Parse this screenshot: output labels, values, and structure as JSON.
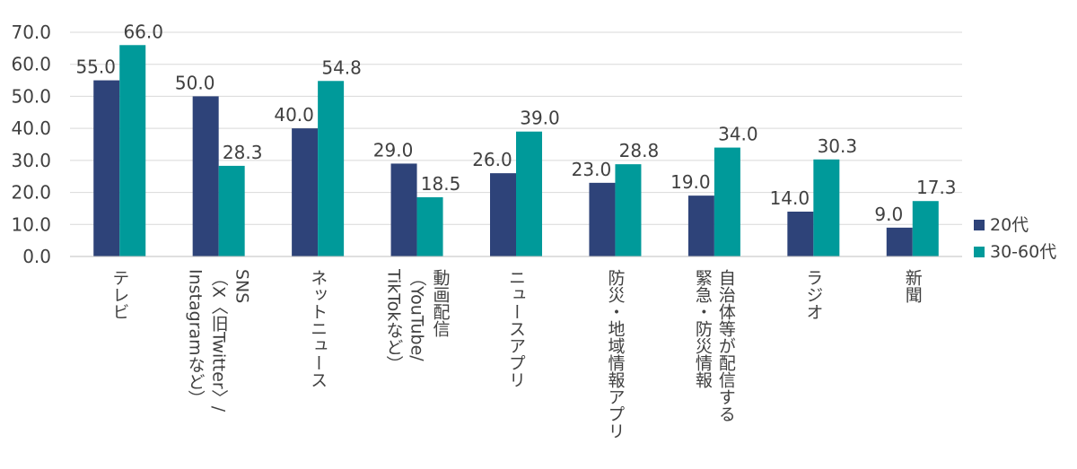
{
  "chart_data": {
    "type": "bar",
    "categories": [
      [
        "テレビ"
      ],
      [
        "SNS",
        "（X〈旧Twitter〉/",
        "Instagramなど）"
      ],
      [
        "ネットニュース"
      ],
      [
        "動画配信",
        "（YouTube/",
        "TikTokなど）"
      ],
      [
        "ニュースアプリ"
      ],
      [
        "防災・地域情報アプリ"
      ],
      [
        "自治体等が配信する",
        "緊急・防災情報"
      ],
      [
        "ラジオ"
      ],
      [
        "新聞"
      ]
    ],
    "series": [
      {
        "name": "20代",
        "color": "#2e4379",
        "values": [
          55.0,
          50.0,
          40.0,
          29.0,
          26.0,
          23.0,
          19.0,
          14.0,
          9.0
        ]
      },
      {
        "name": "30-60代",
        "color": "#009a9a",
        "values": [
          66.0,
          28.3,
          54.8,
          18.5,
          39.0,
          28.8,
          34.0,
          30.3,
          17.3
        ]
      }
    ],
    "ylim": [
      0,
      70
    ],
    "yticks": [
      "0.0",
      "10.0",
      "20.0",
      "30.0",
      "40.0",
      "50.0",
      "60.0",
      "70.0"
    ],
    "grid": true,
    "legend": "right"
  }
}
